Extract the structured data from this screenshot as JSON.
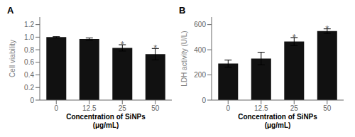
{
  "chart_data": [
    {
      "type": "bar",
      "title": "A",
      "categories": [
        "0",
        "12.5",
        "25",
        "50"
      ],
      "values": [
        1.0,
        0.97,
        0.83,
        0.73
      ],
      "errors": [
        0.008,
        0.018,
        0.05,
        0.09
      ],
      "ylabel": "Cell viability",
      "xlabel": "Concentration of SiNPs\n(μg/mL)",
      "ylim": [
        0,
        1.32
      ],
      "yticks": [
        0,
        0.2,
        0.4,
        0.6,
        0.8,
        {
          "value": 1,
          "label": "1.0"
        },
        1.2
      ],
      "color": "#111111",
      "grid": false,
      "annotations": [
        {
          "category": "25",
          "text": "*",
          "color": "#666666"
        },
        {
          "category": "50",
          "text": "*",
          "color": "#666666"
        }
      ]
    },
    {
      "type": "bar",
      "title": "B",
      "categories": [
        "0",
        "12.5",
        "25",
        "50"
      ],
      "values": [
        290,
        330,
        465,
        548
      ],
      "errors": [
        28,
        50,
        32,
        18
      ],
      "ylabel": "LDH activity (U/L)",
      "xlabel": "Concentration of SiNPs\n(μg/mL)",
      "ylim": [
        0,
        660
      ],
      "yticks": [
        0,
        200,
        400,
        600
      ],
      "color": "#111111",
      "grid": false,
      "annotations": [
        {
          "category": "25",
          "text": "*",
          "color": "#666666"
        },
        {
          "category": "50",
          "text": "*",
          "color": "#666666"
        }
      ]
    }
  ]
}
